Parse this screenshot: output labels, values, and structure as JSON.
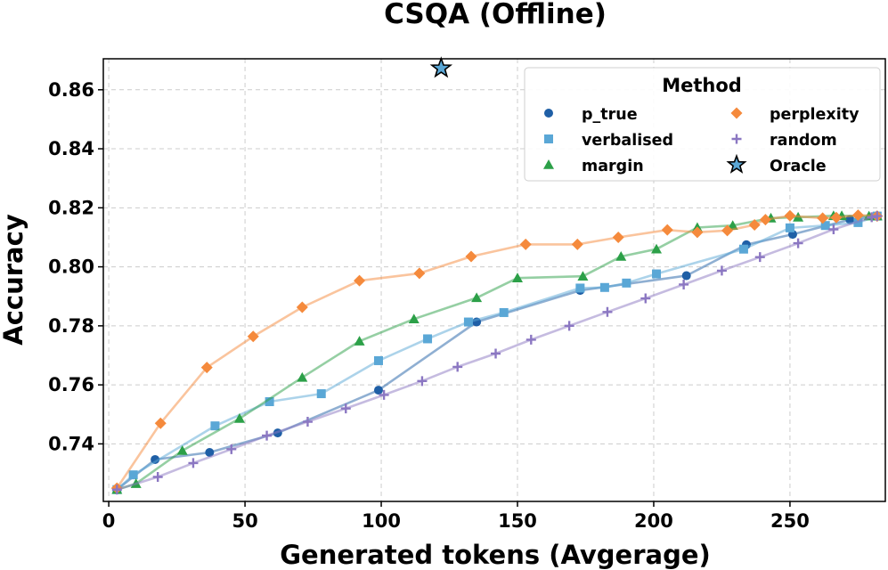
{
  "chart_data": {
    "type": "line",
    "title": "CSQA (Offline)",
    "xlabel": "Generated tokens (Avgerage)",
    "ylabel": "Accuracy",
    "xlim": [
      -2,
      285
    ],
    "ylim": [
      0.7205,
      0.8705
    ],
    "xticks": [
      0,
      50,
      100,
      150,
      200,
      250
    ],
    "yticks": [
      0.74,
      0.76,
      0.78,
      0.8,
      0.82,
      0.84,
      0.86
    ],
    "ytick_labels": [
      "0.74",
      "0.76",
      "0.78",
      "0.80",
      "0.82",
      "0.84",
      "0.86"
    ],
    "grid": true,
    "legend": {
      "title": "Method",
      "placement": "top-right",
      "columns": 2
    },
    "series": [
      {
        "name": "p_true",
        "color": "#1f5fa6",
        "marker": "circle",
        "x": [
          3,
          17,
          37,
          62,
          99,
          135,
          173,
          212,
          234,
          251,
          272,
          282
        ],
        "y": [
          0.7245,
          0.7347,
          0.7371,
          0.7437,
          0.7582,
          0.7813,
          0.792,
          0.797,
          0.8075,
          0.811,
          0.816,
          0.8172
        ]
      },
      {
        "name": "verbalised",
        "color": "#5aa7d6",
        "marker": "square",
        "x": [
          3,
          9,
          39,
          59,
          78,
          99,
          117,
          132,
          145,
          173,
          182,
          190,
          201,
          233,
          250,
          263,
          275,
          282
        ],
        "y": [
          0.7245,
          0.7295,
          0.7461,
          0.7543,
          0.757,
          0.7682,
          0.7756,
          0.7813,
          0.7845,
          0.7928,
          0.793,
          0.7945,
          0.7976,
          0.806,
          0.8132,
          0.814,
          0.815,
          0.8172
        ]
      },
      {
        "name": "margin",
        "color": "#2ca048",
        "marker": "triangle",
        "x": [
          3,
          10,
          27,
          48,
          71,
          92,
          112,
          135,
          150,
          174,
          188,
          201,
          216,
          229,
          243,
          253,
          266,
          269,
          279,
          282
        ],
        "y": [
          0.7245,
          0.7265,
          0.7377,
          0.7486,
          0.7625,
          0.7748,
          0.7823,
          0.7895,
          0.7962,
          0.7968,
          0.8035,
          0.806,
          0.8133,
          0.814,
          0.8165,
          0.8168,
          0.8173,
          0.8173,
          0.8172,
          0.8172
        ]
      },
      {
        "name": "perplexity",
        "color": "#f58a3c",
        "marker": "diamond",
        "x": [
          3,
          19,
          36,
          53,
          71,
          92,
          114,
          133,
          153,
          172,
          187,
          205,
          216,
          227,
          237,
          241,
          250,
          262,
          267,
          275,
          282
        ],
        "y": [
          0.725,
          0.747,
          0.7659,
          0.7764,
          0.7863,
          0.7953,
          0.7978,
          0.8035,
          0.8076,
          0.8076,
          0.81,
          0.8125,
          0.8117,
          0.8123,
          0.8142,
          0.816,
          0.8173,
          0.8165,
          0.8167,
          0.8175,
          0.8172
        ]
      },
      {
        "name": "random",
        "color": "#8b77c2",
        "marker": "plus",
        "x": [
          3,
          18,
          31,
          45,
          58,
          73,
          87,
          101,
          115,
          128,
          142,
          155,
          169,
          183,
          197,
          211,
          225,
          239,
          253,
          266,
          280,
          282
        ],
        "y": [
          0.7245,
          0.7288,
          0.7335,
          0.7382,
          0.7428,
          0.7475,
          0.752,
          0.7566,
          0.7613,
          0.7661,
          0.7706,
          0.7753,
          0.78,
          0.7847,
          0.7893,
          0.794,
          0.7987,
          0.8033,
          0.808,
          0.8127,
          0.8168,
          0.8172
        ]
      }
    ],
    "oracle": {
      "name": "Oracle",
      "color": "#5aa7d6",
      "marker": "star",
      "x": 122,
      "y": 0.8673
    }
  }
}
